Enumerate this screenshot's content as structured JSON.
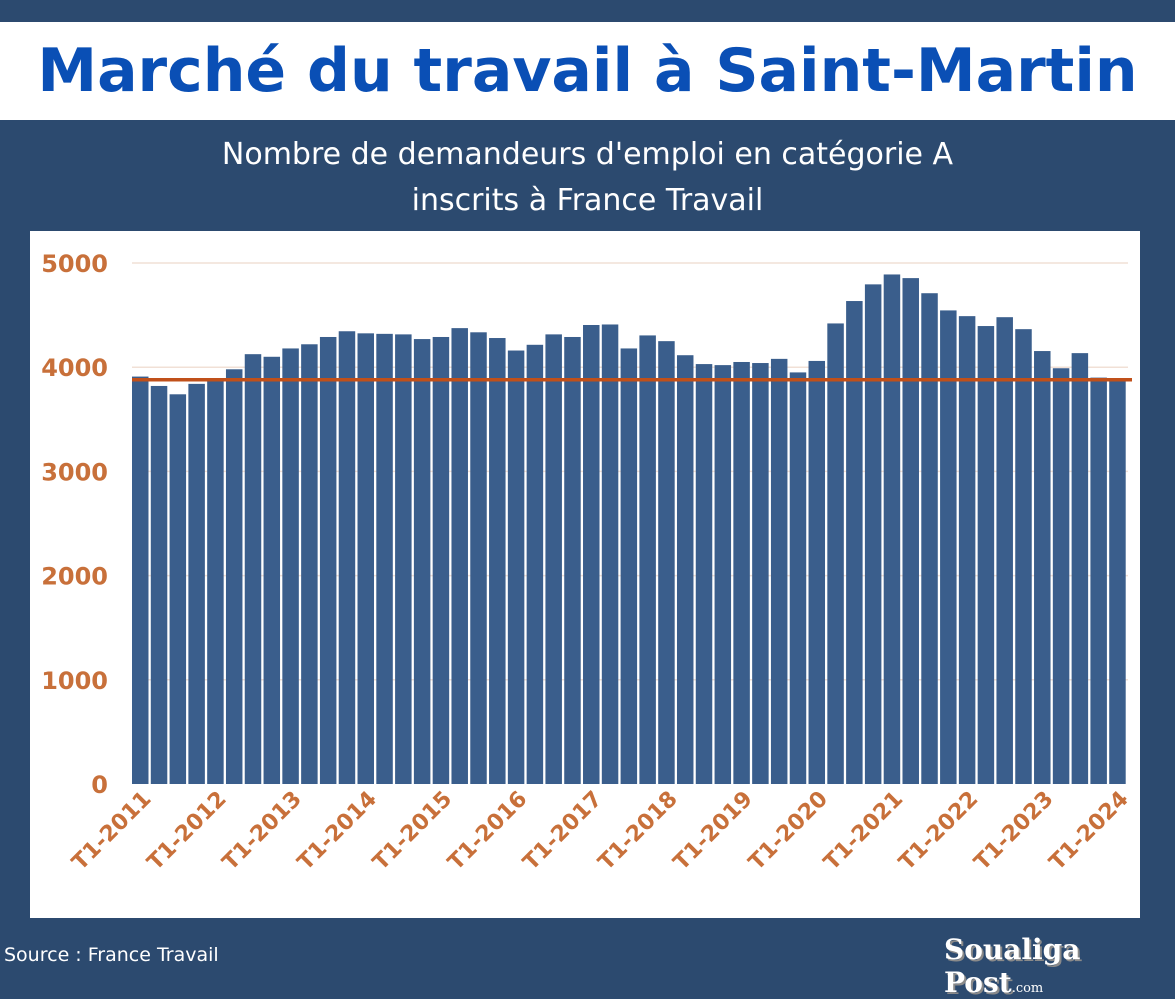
{
  "header": {
    "title": "Marché du travail à Saint-Martin"
  },
  "chart_data": {
    "type": "bar",
    "title": "Nombre de demandeurs d'emploi en catégorie A",
    "subtitle": "inscrits à France Travail",
    "xlabel": "",
    "ylabel": "",
    "ylim": [
      0,
      5000
    ],
    "yticks": [
      "0",
      "1000",
      "2000",
      "3000",
      "4000",
      "5000"
    ],
    "ytick_values": [
      0,
      1000,
      2000,
      3000,
      4000,
      5000
    ],
    "xtick_labels": [
      "T1-2011",
      "T1-2012",
      "T1-2013",
      "T1-2014",
      "T1-2015",
      "T1-2016",
      "T1-2017",
      "T1-2018",
      "T1-2019",
      "T1-2020",
      "T1-2021",
      "T1-2022",
      "T1-2023",
      "T1-2024"
    ],
    "xtick_every": 4,
    "categories_start": "T1-2011",
    "categories_end": "T1-2024",
    "frequency": "quarterly",
    "values": [
      3910,
      3820,
      3740,
      3840,
      3880,
      3980,
      4125,
      4100,
      4180,
      4220,
      4290,
      4345,
      4325,
      4320,
      4315,
      4270,
      4290,
      4375,
      4335,
      4280,
      4160,
      4215,
      4315,
      4290,
      4405,
      4410,
      4180,
      4305,
      4250,
      4115,
      4030,
      4020,
      4050,
      4040,
      4080,
      3950,
      4060,
      4420,
      4635,
      4795,
      4890,
      4855,
      4710,
      4545,
      4490,
      4395,
      4480,
      4365,
      4155,
      3990,
      4135,
      3900,
      3890
    ],
    "reference_line": 3880,
    "colors": {
      "bar": "#3a5e8c",
      "reference": "#c0501a",
      "tick": "#c8703a",
      "grid": "#f1e0d6"
    }
  },
  "footer": {
    "source": "Source : France Travail",
    "logo": "Soualiga Post",
    "logo_suffix": ".com"
  }
}
